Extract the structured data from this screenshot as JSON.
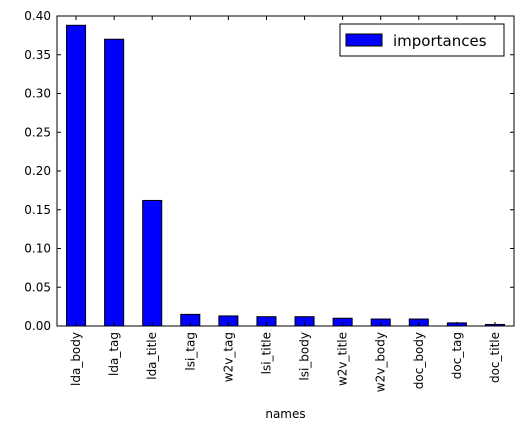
{
  "chart_data": {
    "type": "bar",
    "categories": [
      "lda_body",
      "lda_tag",
      "lda_title",
      "lsi_tag",
      "w2v_tag",
      "lsi_title",
      "lsi_body",
      "w2v_title",
      "w2v_body",
      "doc_body",
      "doc_tag",
      "doc_title"
    ],
    "series": [
      {
        "name": "importances",
        "values": [
          0.388,
          0.37,
          0.162,
          0.015,
          0.013,
          0.012,
          0.012,
          0.01,
          0.009,
          0.009,
          0.004,
          0.002
        ]
      }
    ],
    "yticks": [
      "0.00",
      "0.05",
      "0.10",
      "0.15",
      "0.20",
      "0.25",
      "0.30",
      "0.35",
      "0.40"
    ],
    "ylim": [
      0,
      0.4
    ],
    "xlabel": "names",
    "ylabel": "",
    "title": "",
    "bar_color": "#0000ff",
    "legend": {
      "position": "top-right"
    },
    "grid": false
  }
}
